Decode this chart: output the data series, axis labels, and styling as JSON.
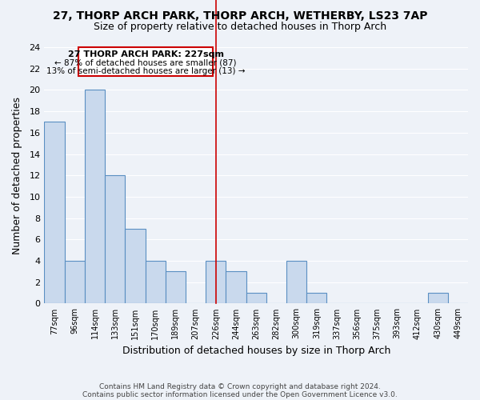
{
  "title1": "27, THORP ARCH PARK, THORP ARCH, WETHERBY, LS23 7AP",
  "title2": "Size of property relative to detached houses in Thorp Arch",
  "xlabel": "Distribution of detached houses by size in Thorp Arch",
  "ylabel": "Number of detached properties",
  "bar_labels": [
    "77sqm",
    "96sqm",
    "114sqm",
    "133sqm",
    "151sqm",
    "170sqm",
    "189sqm",
    "207sqm",
    "226sqm",
    "244sqm",
    "263sqm",
    "282sqm",
    "300sqm",
    "319sqm",
    "337sqm",
    "356sqm",
    "375sqm",
    "393sqm",
    "412sqm",
    "430sqm",
    "449sqm"
  ],
  "bar_heights": [
    17,
    4,
    20,
    12,
    7,
    4,
    3,
    0,
    4,
    3,
    1,
    0,
    4,
    1,
    0,
    0,
    0,
    0,
    0,
    1,
    0
  ],
  "bar_color": "#c9d9ed",
  "bar_edge_color": "#5a8fc2",
  "vline_x": 8,
  "vline_color": "#cc0000",
  "annotation_title": "27 THORP ARCH PARK: 227sqm",
  "annotation_line1": "← 87% of detached houses are smaller (87)",
  "annotation_line2": "13% of semi-detached houses are larger (13) →",
  "annotation_box_color": "#cc0000",
  "annotation_fill": "#ffffff",
  "ylim": [
    0,
    24
  ],
  "yticks": [
    0,
    2,
    4,
    6,
    8,
    10,
    12,
    14,
    16,
    18,
    20,
    22,
    24
  ],
  "footnote1": "Contains HM Land Registry data © Crown copyright and database right 2024.",
  "footnote2": "Contains public sector information licensed under the Open Government Licence v3.0.",
  "background_color": "#eef2f8",
  "grid_color": "#ffffff",
  "title1_fontsize": 10,
  "title2_fontsize": 9
}
